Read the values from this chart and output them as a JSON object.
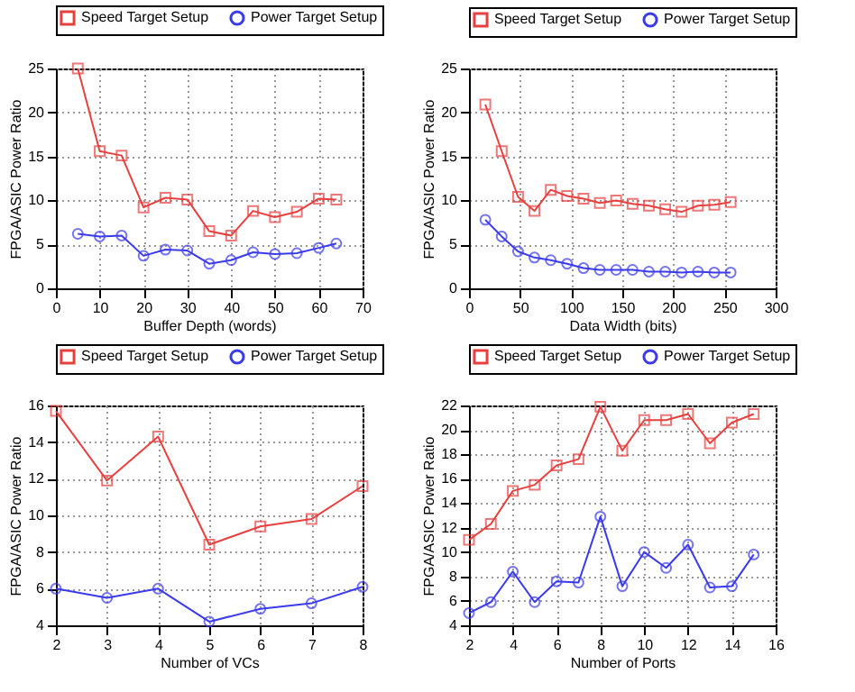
{
  "chart_data": [
    {
      "type": "line",
      "xlabel": "Buffer Depth (words)",
      "ylabel": "FPGA/ASIC Power Ratio",
      "x": [
        5,
        10,
        15,
        20,
        25,
        30,
        35,
        40,
        45,
        50,
        55,
        60,
        64
      ],
      "xlim": [
        0,
        70
      ],
      "xticks": [
        0,
        10,
        20,
        30,
        40,
        50,
        60,
        70
      ],
      "ylim": [
        0,
        25
      ],
      "yticks": [
        0,
        5,
        10,
        15,
        20,
        25
      ],
      "grid": true,
      "legend": "top",
      "series": [
        {
          "name": "Speed Target Setup",
          "color": "#e8403f",
          "marker": "square",
          "values": [
            25,
            15.6,
            15.1,
            9.2,
            10.3,
            10.1,
            6.5,
            6.0,
            8.8,
            8.1,
            8.7,
            10.2,
            10.1
          ]
        },
        {
          "name": "Power Target Setup",
          "color": "#3a3aee",
          "marker": "circle",
          "values": [
            6.2,
            5.9,
            6.0,
            3.7,
            4.4,
            4.3,
            2.8,
            3.2,
            4.1,
            3.9,
            4.0,
            4.6,
            5.1
          ]
        }
      ]
    },
    {
      "type": "line",
      "xlabel": "Data Width (bits)",
      "ylabel": "FPGA/ASIC Power Ratio",
      "x": [
        16,
        32,
        48,
        64,
        80,
        96,
        112,
        128,
        144,
        160,
        176,
        192,
        208,
        224,
        240,
        256
      ],
      "xlim": [
        0,
        300
      ],
      "xticks": [
        0,
        50,
        100,
        150,
        200,
        250,
        300
      ],
      "ylim": [
        0,
        25
      ],
      "yticks": [
        0,
        5,
        10,
        15,
        20,
        25
      ],
      "grid": true,
      "legend": "top",
      "series": [
        {
          "name": "Speed Target Setup",
          "color": "#e8403f",
          "marker": "square",
          "values": [
            20.9,
            15.6,
            10.4,
            8.8,
            11.2,
            10.5,
            10.2,
            9.7,
            10.0,
            9.6,
            9.4,
            9.0,
            8.7,
            9.4,
            9.5,
            9.8
          ]
        },
        {
          "name": "Power Target Setup",
          "color": "#3a3aee",
          "marker": "circle",
          "values": [
            7.8,
            5.9,
            4.2,
            3.5,
            3.2,
            2.8,
            2.3,
            2.1,
            2.1,
            2.1,
            1.9,
            1.9,
            1.8,
            1.9,
            1.8,
            1.8
          ]
        }
      ]
    },
    {
      "type": "line",
      "xlabel": "Number of VCs",
      "ylabel": "FPGA/ASIC Power Ratio",
      "x": [
        2,
        3,
        4,
        5,
        6,
        7,
        8
      ],
      "xlim": [
        2,
        8
      ],
      "xticks": [
        2,
        3,
        4,
        5,
        6,
        7,
        8
      ],
      "ylim": [
        4,
        16
      ],
      "yticks": [
        4,
        6,
        8,
        10,
        12,
        14,
        16
      ],
      "grid": true,
      "legend": "top",
      "series": [
        {
          "name": "Speed Target Setup",
          "color": "#e8403f",
          "marker": "square",
          "values": [
            15.7,
            11.9,
            14.3,
            8.4,
            9.4,
            9.8,
            11.6
          ]
        },
        {
          "name": "Power Target Setup",
          "color": "#3a3aee",
          "marker": "circle",
          "values": [
            6.0,
            5.5,
            6.0,
            4.2,
            4.9,
            5.2,
            6.1
          ]
        }
      ]
    },
    {
      "type": "line",
      "xlabel": "Number of Ports",
      "ylabel": "FPGA/ASIC Power Ratio",
      "x": [
        2,
        3,
        4,
        5,
        6,
        7,
        8,
        9,
        10,
        11,
        12,
        13,
        14,
        15
      ],
      "xlim": [
        2,
        16
      ],
      "xticks": [
        2,
        4,
        6,
        8,
        10,
        12,
        14,
        16
      ],
      "ylim": [
        4,
        22
      ],
      "yticks": [
        4,
        6,
        8,
        10,
        12,
        14,
        16,
        18,
        20,
        22
      ],
      "grid": true,
      "legend": "top",
      "series": [
        {
          "name": "Speed Target Setup",
          "color": "#e8403f",
          "marker": "square",
          "values": [
            11.0,
            12.3,
            15.0,
            15.5,
            17.1,
            17.6,
            21.9,
            18.3,
            20.8,
            20.8,
            21.3,
            18.9,
            20.6,
            21.3
          ]
        },
        {
          "name": "Power Target Setup",
          "color": "#3a3aee",
          "marker": "circle",
          "values": [
            5.0,
            5.9,
            8.4,
            5.9,
            7.6,
            7.5,
            12.9,
            7.2,
            10.0,
            8.7,
            10.6,
            7.1,
            7.2,
            9.8
          ]
        }
      ]
    }
  ]
}
